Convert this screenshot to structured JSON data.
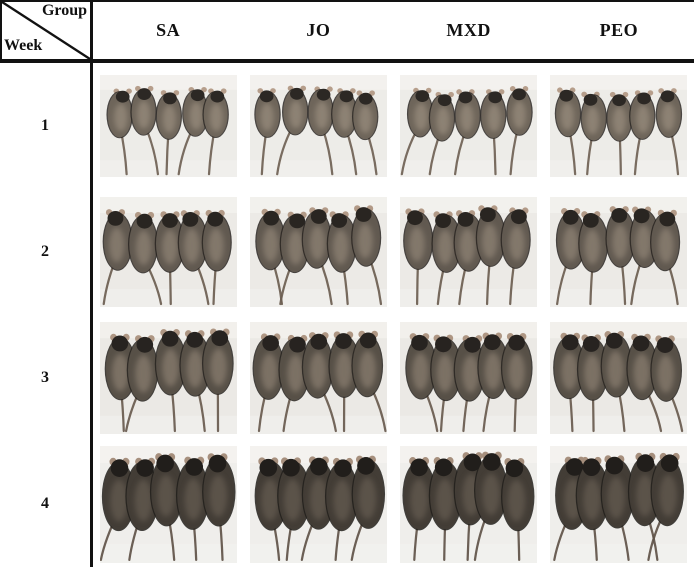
{
  "figure": {
    "kind": "mouse-photo-grid-table",
    "corner": {
      "top_label": "Group",
      "bottom_label": "Week"
    },
    "columns": [
      "SA",
      "JO",
      "MXD",
      "PEO"
    ],
    "rows": [
      {
        "week": "1"
      },
      {
        "week": "2"
      },
      {
        "week": "3"
      },
      {
        "week": "4"
      }
    ],
    "photo_desc": "Photograph of five mice, dorsal view, tails hanging down",
    "mice_per_photo": 5,
    "table_line_color": "#121212",
    "week_styles": [
      {
        "week": "1",
        "bg": "#edece8",
        "fur": "#6e655a",
        "back": "#a29585",
        "head": "#2c2824",
        "ear": "#b69e8b",
        "tail": "#6f6154",
        "scale": 0.84
      },
      {
        "week": "2",
        "bg": "#eceae6",
        "fur": "#615950",
        "back": "#998c7d",
        "head": "#292521",
        "ear": "#b29a87",
        "tail": "#6b5d50",
        "scale": 0.97
      },
      {
        "week": "3",
        "bg": "#ebe9e5",
        "fur": "#575047",
        "back": "#948778",
        "head": "#272320",
        "ear": "#ae9683",
        "tail": "#685a4e",
        "scale": 1.03
      },
      {
        "week": "4",
        "bg": "#efeeeb",
        "fur": "#433d36",
        "back": "#6c6257",
        "head": "#211e1b",
        "ear": "#a68f7d",
        "tail": "#5f5248",
        "scale": 1.09
      }
    ]
  }
}
